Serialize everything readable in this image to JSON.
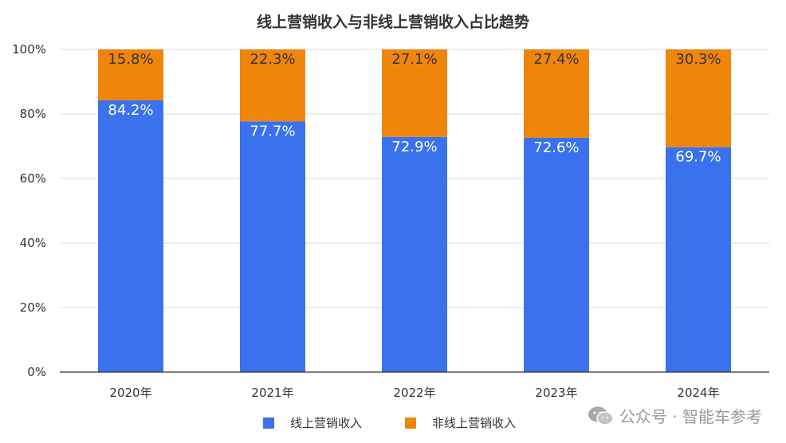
{
  "chart_data": {
    "type": "bar",
    "stacked": true,
    "title": "线上营销收入与非线上营销收入占比趋势",
    "categories": [
      "2020年",
      "2021年",
      "2022年",
      "2023年",
      "2024年"
    ],
    "series": [
      {
        "name": "线上营销收入",
        "values": [
          84.2,
          77.7,
          72.9,
          72.6,
          69.7
        ],
        "labels": [
          "84.2%",
          "77.7%",
          "72.9%",
          "72.6%",
          "69.7%"
        ],
        "color": "#3a72ee",
        "label_color": "#ffffff"
      },
      {
        "name": "非线上营销收入",
        "values": [
          15.8,
          22.3,
          27.1,
          27.4,
          30.3
        ],
        "labels": [
          "15.8%",
          "22.3%",
          "27.1%",
          "27.4%",
          "30.3%"
        ],
        "color": "#f0850c",
        "label_color": "#333333"
      }
    ],
    "ylim": [
      0,
      100
    ],
    "yticks": [
      "0%",
      "20%",
      "40%",
      "60%",
      "80%",
      "100%"
    ],
    "grid": true,
    "legend_position": "bottom"
  },
  "watermark": {
    "text": "公众号 · 智能车参考",
    "icon": "wechat-icon"
  }
}
